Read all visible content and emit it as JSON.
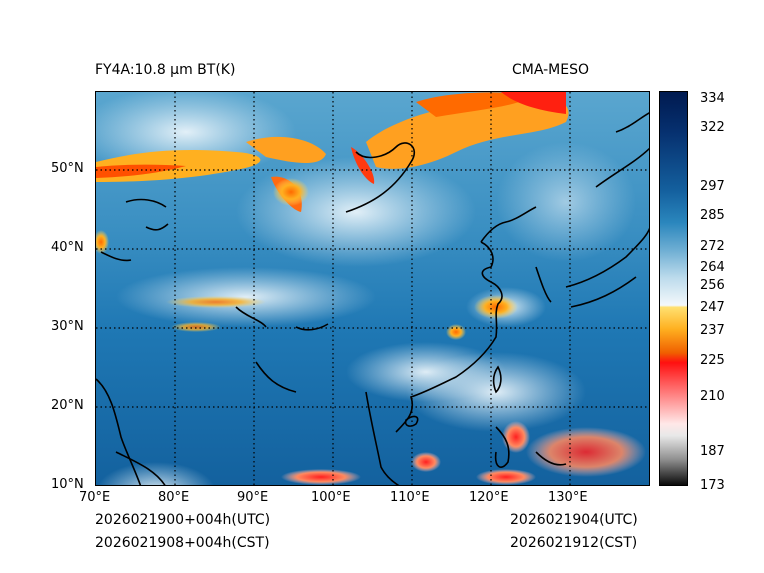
{
  "titles": {
    "left": "FY4A:10.8 µm BT(K)",
    "right": "CMA-MESO"
  },
  "map": {
    "region": "East Asia, 70°E–140°E, 10°N–60°N",
    "lon_ticks": [
      "70°E",
      "80°E",
      "90°E",
      "100°E",
      "110°E",
      "120°E",
      "130°E"
    ],
    "lat_ticks": [
      "50°N",
      "40°N",
      "30°N",
      "20°N",
      "10°N"
    ]
  },
  "colorbar": {
    "ticks": [
      "334",
      "322",
      "297",
      "285",
      "272",
      "264",
      "256",
      "247",
      "237",
      "225",
      "210",
      "187",
      "173"
    ],
    "colors": {
      "top": "#001a50",
      "mid_blue": "#1f78b4",
      "light": "#e8f2f8",
      "yellow": "#ffd000",
      "orange": "#f07000",
      "red": "#ff1010",
      "pink": "#ffd0d0",
      "gray": "#909090",
      "black": "#000000"
    }
  },
  "timestamps": {
    "left_utc": "2026021900+004h(UTC)",
    "left_cst": "2026021908+004h(CST)",
    "right_utc": "2026021904(UTC)",
    "right_cst": "2026021912(CST)"
  }
}
